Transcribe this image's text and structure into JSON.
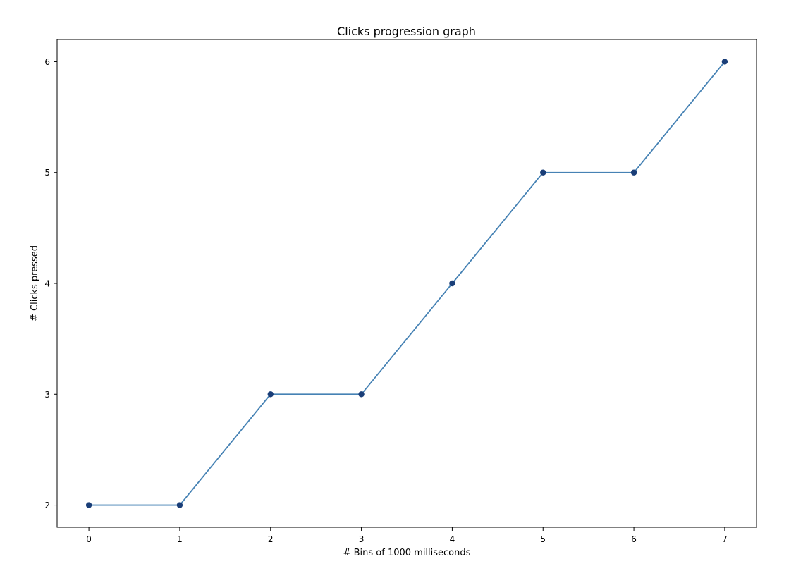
{
  "chart_data": {
    "type": "line",
    "title": "Clicks progression graph",
    "xlabel": "# Bins of 1000 milliseconds",
    "ylabel": "# Clicks pressed",
    "x": [
      0,
      1,
      2,
      3,
      4,
      5,
      6,
      7
    ],
    "xticks": [
      "0",
      "1",
      "2",
      "3",
      "4",
      "5",
      "6",
      "7"
    ],
    "yticks": [
      "2",
      "3",
      "4",
      "5",
      "6"
    ],
    "xlim": [
      -0.35,
      7.35
    ],
    "ylim": [
      1.8,
      6.2
    ],
    "grid": false,
    "series": [
      {
        "values": [
          2,
          2,
          3,
          3,
          4,
          5,
          5,
          6
        ],
        "line_color": "#4682b4",
        "marker_color": "#1a3e78",
        "marker": "circle"
      }
    ]
  }
}
